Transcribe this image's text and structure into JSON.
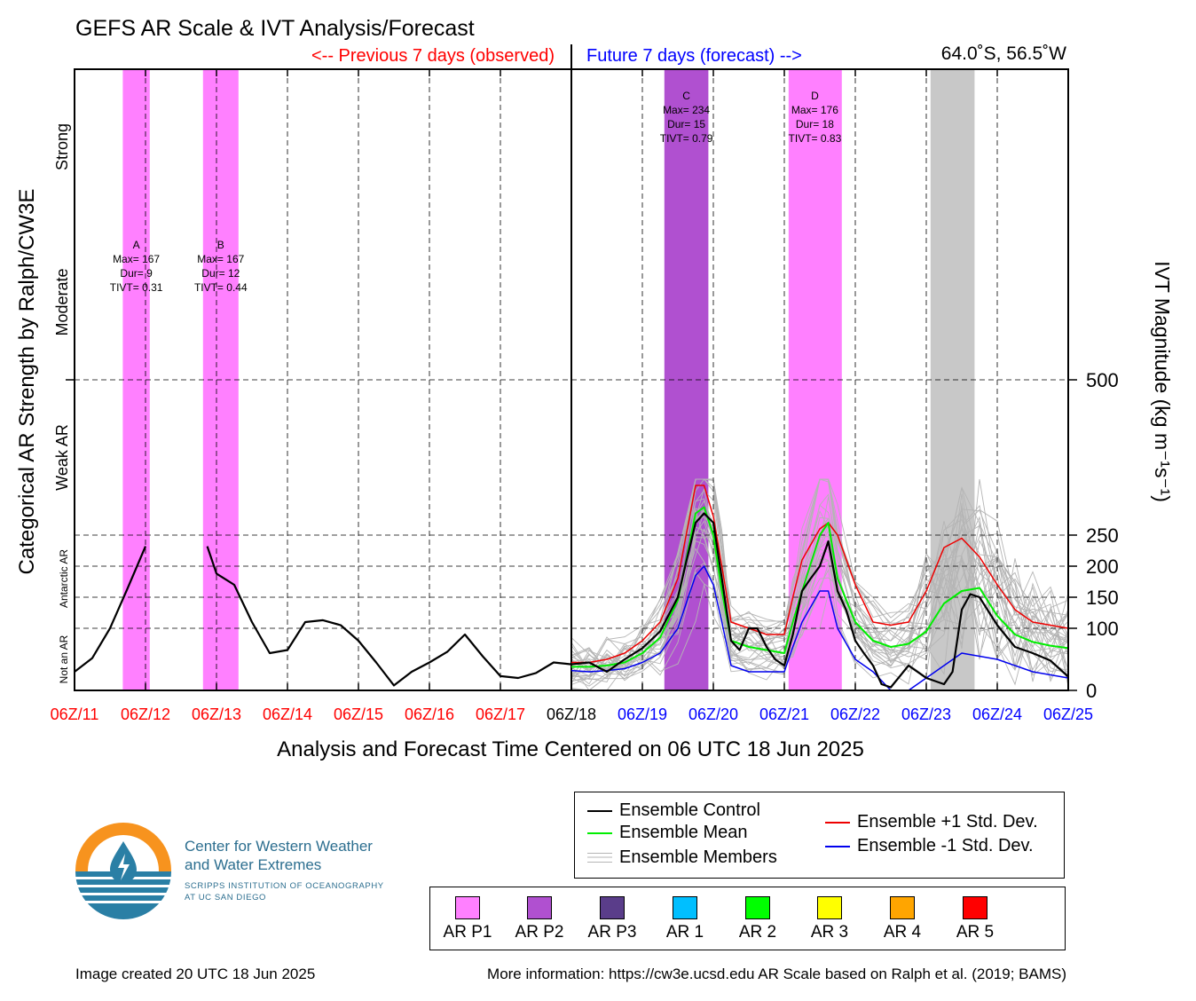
{
  "title": "GEFS AR Scale & IVT Analysis/Forecast",
  "previous_label": "<-- Previous 7 days (observed)",
  "future_label": "Future 7 days (forecast) -->",
  "location": "64.0˚S, 56.5˚W",
  "left_axis_title": "Categorical AR Strength by Ralph/CW3E",
  "right_axis_title": "IVT Magnitude (kg m⁻¹s⁻¹)",
  "xlabel": "Analysis and Forecast Time Centered on 06 UTC 18 Jun 2025",
  "footer_left": "Image created 20 UTC 18 Jun 2025",
  "footer_right": "More information: https://cw3e.ucsd.edu AR Scale based on Ralph et al. (2019; BAMS)",
  "logo": {
    "line1": "Center for Western Weather",
    "line2": "and Water Extremes",
    "line3": "SCRIPPS INSTITUTION OF OCEANOGRAPHY",
    "line4": "AT UC SAN DIEGO",
    "colors": {
      "orange": "#f7931e",
      "teal": "#2a7fa5"
    }
  },
  "legend": {
    "control": "Ensemble Control",
    "mean": "Ensemble Mean",
    "members": "Ensemble Members",
    "plus": "Ensemble +1 Std. Dev.",
    "minus": "Ensemble -1 Std. Dev."
  },
  "categories": [
    {
      "label": "AR P1",
      "color": "#ff80ff"
    },
    {
      "label": "AR P2",
      "color": "#b050d0"
    },
    {
      "label": "AR P3",
      "color": "#5a3d8a"
    },
    {
      "label": "AR 1",
      "color": "#00bfff"
    },
    {
      "label": "AR 2",
      "color": "#00ff00"
    },
    {
      "label": "AR 3",
      "color": "#ffff00"
    },
    {
      "label": "AR 4",
      "color": "#ffa500"
    },
    {
      "label": "AR 5",
      "color": "#ff0000"
    }
  ],
  "chart_data": {
    "type": "line",
    "x_unit": "days since 06Z/11",
    "xlim": [
      0,
      14
    ],
    "ylim": [
      0,
      1000
    ],
    "x_ticks": [
      {
        "label": "06Z/11",
        "color": "#ff0000"
      },
      {
        "label": "06Z/12",
        "color": "#ff0000"
      },
      {
        "label": "06Z/13",
        "color": "#ff0000"
      },
      {
        "label": "06Z/14",
        "color": "#ff0000"
      },
      {
        "label": "06Z/15",
        "color": "#ff0000"
      },
      {
        "label": "06Z/16",
        "color": "#ff0000"
      },
      {
        "label": "06Z/17",
        "color": "#ff0000"
      },
      {
        "label": "06Z/18",
        "color": "#000000"
      },
      {
        "label": "06Z/19",
        "color": "#0000ff"
      },
      {
        "label": "06Z/20",
        "color": "#0000ff"
      },
      {
        "label": "06Z/21",
        "color": "#0000ff"
      },
      {
        "label": "06Z/22",
        "color": "#0000ff"
      },
      {
        "label": "06Z/23",
        "color": "#0000ff"
      },
      {
        "label": "06Z/24",
        "color": "#0000ff"
      },
      {
        "label": "06Z/25",
        "color": "#0000ff"
      }
    ],
    "right_ticks": [
      0,
      100,
      150,
      200,
      250,
      500
    ],
    "category_labels": [
      {
        "label": "Not an AR",
        "y": 50,
        "size": 12
      },
      {
        "label": "Antarctic AR",
        "y": 180,
        "size": 12
      },
      {
        "label": "Weak AR",
        "y": 375,
        "size": 18
      },
      {
        "label": "Moderate",
        "y": 625,
        "size": 18
      },
      {
        "label": "Strong",
        "y": 875,
        "size": 18
      }
    ],
    "dashed_levels": [
      100,
      150,
      200,
      250,
      500
    ],
    "now_x": 7,
    "shaded_periods": [
      {
        "x0": 0.68,
        "x1": 1.06,
        "color": "#ff80ff"
      },
      {
        "x0": 1.81,
        "x1": 2.31,
        "color": "#ff80ff"
      },
      {
        "x0": 8.31,
        "x1": 8.93,
        "color": "#b050d0"
      },
      {
        "x0": 10.06,
        "x1": 10.81,
        "color": "#ff80ff"
      },
      {
        "x0": 12.06,
        "x1": 12.68,
        "color": "#c8c8c8"
      }
    ],
    "events": [
      {
        "id": "A",
        "max": "Max= 167",
        "dur": "Dur= 9",
        "tivt": "TIVT= 0.31",
        "x": 0.87,
        "y": 740
      },
      {
        "id": "B",
        "max": "Max= 167",
        "dur": "Dur= 12",
        "tivt": "TIVT= 0.44",
        "x": 2.06,
        "y": 740
      },
      {
        "id": "C",
        "max": "Max= 234",
        "dur": "Dur= 15",
        "tivt": "TIVT= 0.79",
        "x": 8.62,
        "y": 980
      },
      {
        "id": "D",
        "max": "Max= 176",
        "dur": "Dur= 18",
        "tivt": "TIVT= 0.83",
        "x": 10.43,
        "y": 980
      }
    ],
    "series": [
      {
        "name": "Ensemble Control",
        "color": "#000000",
        "width": 2.2,
        "segments": [
          [
            [
              0,
              30
            ],
            [
              0.25,
              52
            ],
            [
              0.5,
              100
            ],
            [
              0.75,
              165
            ],
            [
              1.0,
              232
            ]
          ],
          [
            [
              1.87,
              232
            ],
            [
              2.0,
              188
            ],
            [
              2.25,
              170
            ],
            [
              2.5,
              110
            ],
            [
              2.75,
              60
            ],
            [
              3.0,
              65
            ],
            [
              3.25,
              110
            ],
            [
              3.5,
              113
            ],
            [
              3.75,
              105
            ],
            [
              4.0,
              80
            ],
            [
              4.25,
              45
            ],
            [
              4.5,
              8
            ],
            [
              4.75,
              30
            ],
            [
              5.0,
              45
            ],
            [
              5.25,
              62
            ],
            [
              5.5,
              90
            ],
            [
              5.75,
              55
            ],
            [
              6.0,
              23
            ],
            [
              6.25,
              20
            ],
            [
              6.5,
              28
            ],
            [
              6.75,
              45
            ],
            [
              7.0,
              42
            ],
            [
              7.25,
              45
            ],
            [
              7.5,
              30
            ],
            [
              7.75,
              50
            ],
            [
              8.0,
              68
            ],
            [
              8.25,
              95
            ],
            [
              8.5,
              150
            ],
            [
              8.75,
              270
            ],
            [
              8.87,
              285
            ],
            [
              9.0,
              270
            ],
            [
              9.12,
              180
            ],
            [
              9.25,
              80
            ],
            [
              9.37,
              65
            ],
            [
              9.5,
              100
            ],
            [
              9.62,
              100
            ],
            [
              9.75,
              70
            ],
            [
              9.87,
              50
            ],
            [
              10.0,
              40
            ],
            [
              10.12,
              90
            ],
            [
              10.25,
              160
            ],
            [
              10.37,
              180
            ],
            [
              10.5,
              200
            ],
            [
              10.62,
              240
            ],
            [
              10.75,
              160
            ],
            [
              10.87,
              130
            ],
            [
              11.0,
              80
            ],
            [
              11.12,
              60
            ],
            [
              11.25,
              40
            ],
            [
              11.37,
              10
            ],
            [
              11.5,
              5
            ],
            [
              11.75,
              40
            ],
            [
              12.0,
              20
            ],
            [
              12.25,
              10
            ],
            [
              12.37,
              30
            ],
            [
              12.5,
              130
            ],
            [
              12.62,
              155
            ],
            [
              12.75,
              150
            ],
            [
              13.0,
              105
            ],
            [
              13.25,
              70
            ],
            [
              13.5,
              60
            ],
            [
              13.75,
              48
            ],
            [
              14.0,
              22
            ]
          ]
        ]
      },
      {
        "name": "Ensemble Mean",
        "color": "#00ee00",
        "width": 2,
        "segments": [
          [
            [
              7.0,
              38
            ],
            [
              7.25,
              38
            ],
            [
              7.5,
              40
            ],
            [
              7.75,
              45
            ],
            [
              8.0,
              60
            ],
            [
              8.25,
              85
            ],
            [
              8.5,
              145
            ],
            [
              8.75,
              285
            ],
            [
              8.87,
              295
            ],
            [
              9.0,
              250
            ],
            [
              9.12,
              160
            ],
            [
              9.25,
              80
            ],
            [
              9.5,
              70
            ],
            [
              9.75,
              65
            ],
            [
              10.0,
              60
            ],
            [
              10.12,
              110
            ],
            [
              10.25,
              160
            ],
            [
              10.5,
              250
            ],
            [
              10.62,
              270
            ],
            [
              10.75,
              180
            ],
            [
              11.0,
              110
            ],
            [
              11.25,
              80
            ],
            [
              11.5,
              70
            ],
            [
              11.75,
              75
            ],
            [
              12.0,
              95
            ],
            [
              12.25,
              140
            ],
            [
              12.5,
              160
            ],
            [
              12.75,
              165
            ],
            [
              13.0,
              120
            ],
            [
              13.25,
              90
            ],
            [
              13.5,
              78
            ],
            [
              13.75,
              72
            ],
            [
              14.0,
              68
            ]
          ]
        ]
      },
      {
        "name": "Ensemble +1 Std. Dev.",
        "color": "#ee0000",
        "width": 1.5,
        "segments": [
          [
            [
              7.0,
              45
            ],
            [
              7.25,
              45
            ],
            [
              7.5,
              50
            ],
            [
              7.75,
              60
            ],
            [
              8.0,
              80
            ],
            [
              8.25,
              110
            ],
            [
              8.5,
              180
            ],
            [
              8.75,
              330
            ],
            [
              8.87,
              330
            ],
            [
              9.0,
              280
            ],
            [
              9.12,
              200
            ],
            [
              9.25,
              110
            ],
            [
              9.5,
              100
            ],
            [
              9.75,
              90
            ],
            [
              10.0,
              90
            ],
            [
              10.12,
              150
            ],
            [
              10.25,
              210
            ],
            [
              10.5,
              260
            ],
            [
              10.62,
              270
            ],
            [
              10.75,
              250
            ],
            [
              11.0,
              170
            ],
            [
              11.25,
              110
            ],
            [
              11.5,
              105
            ],
            [
              11.75,
              110
            ],
            [
              12.0,
              160
            ],
            [
              12.25,
              230
            ],
            [
              12.5,
              245
            ],
            [
              12.75,
              215
            ],
            [
              13.0,
              170
            ],
            [
              13.25,
              130
            ],
            [
              13.5,
              110
            ],
            [
              13.75,
              105
            ],
            [
              14.0,
              100
            ]
          ]
        ]
      },
      {
        "name": "Ensemble -1 Std. Dev.",
        "color": "#0000ee",
        "width": 1.5,
        "segments": [
          [
            [
              7.0,
              32
            ],
            [
              7.25,
              30
            ],
            [
              7.5,
              32
            ],
            [
              7.75,
              35
            ],
            [
              8.0,
              45
            ],
            [
              8.25,
              60
            ],
            [
              8.5,
              100
            ],
            [
              8.75,
              185
            ],
            [
              8.87,
              200
            ],
            [
              9.0,
              170
            ],
            [
              9.12,
              110
            ],
            [
              9.25,
              40
            ],
            [
              9.5,
              30
            ],
            [
              9.75,
              30
            ],
            [
              10.0,
              30
            ],
            [
              10.12,
              70
            ],
            [
              10.25,
              110
            ],
            [
              10.5,
              160
            ],
            [
              10.62,
              160
            ],
            [
              10.75,
              100
            ],
            [
              11.0,
              50
            ],
            [
              11.25,
              30
            ],
            [
              11.5,
              0
            ],
            [
              11.75,
              0
            ],
            [
              12.0,
              20
            ],
            [
              12.25,
              40
            ],
            [
              12.5,
              60
            ],
            [
              12.75,
              55
            ],
            [
              13.0,
              50
            ],
            [
              13.25,
              40
            ],
            [
              13.5,
              30
            ],
            [
              13.75,
              25
            ],
            [
              14.0,
              20
            ]
          ]
        ]
      }
    ],
    "member_seed": 7,
    "member_count": 30
  }
}
